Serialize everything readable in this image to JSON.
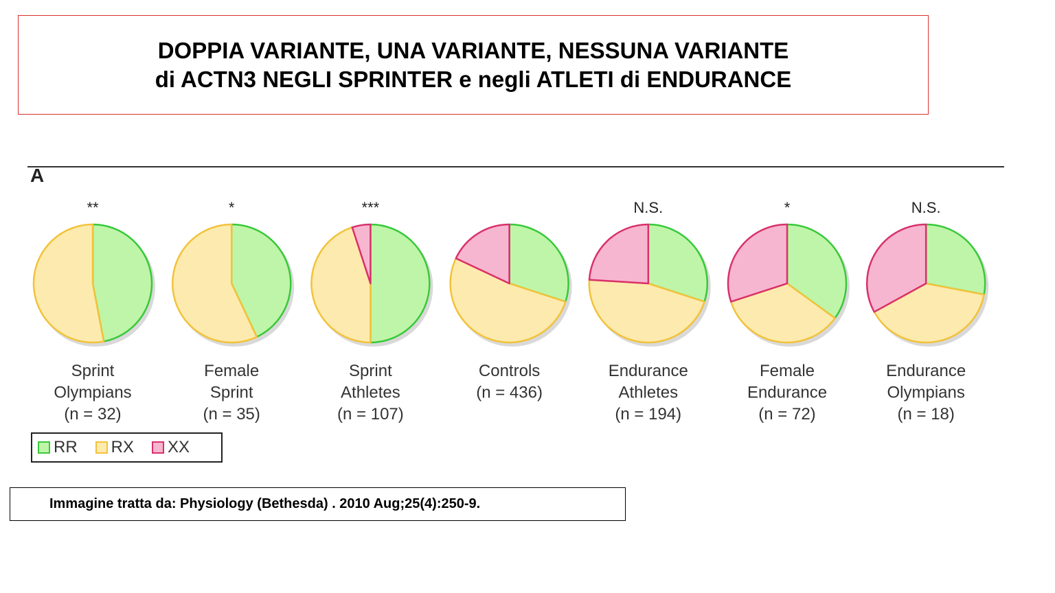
{
  "title": {
    "line1": "DOPPIA VARIANTE, UNA VARIANTE, NESSUNA VARIANTE",
    "line2": "di ACTN3 NEGLI SPRINTER e negli ATLETI di ENDURANCE"
  },
  "panel_label": "A",
  "source": "Immagine tratta da: Physiology (Bethesda) . 2010 Aug;25(4):250-9.",
  "colors": {
    "RR_fill": "#bff5a8",
    "RR_stroke": "#38c93a",
    "RX_fill": "#fdeaae",
    "RX_stroke": "#f2c23a",
    "XX_fill": "#f7b6cf",
    "XX_stroke": "#d9306b"
  },
  "legend": [
    {
      "key": "RR",
      "label": "RR"
    },
    {
      "key": "RX",
      "label": "RX"
    },
    {
      "key": "XX",
      "label": "XX"
    }
  ],
  "chart_data": {
    "type": "pie",
    "categories": [
      "RR",
      "RX",
      "XX"
    ],
    "groups": [
      {
        "caption": [
          "Sprint",
          "Olympians",
          "(n = 32)"
        ],
        "significance": "**",
        "values": {
          "RR": 47,
          "RX": 53,
          "XX": 0
        }
      },
      {
        "caption": [
          "Female",
          "Sprint",
          "(n = 35)"
        ],
        "significance": "*",
        "values": {
          "RR": 43,
          "RX": 57,
          "XX": 0
        }
      },
      {
        "caption": [
          "Sprint",
          "Athletes",
          "(n = 107)"
        ],
        "significance": "***",
        "values": {
          "RR": 50,
          "RX": 45,
          "XX": 5
        }
      },
      {
        "caption": [
          "Controls",
          "(n = 436)"
        ],
        "significance": "",
        "values": {
          "RR": 30,
          "RX": 52,
          "XX": 18
        }
      },
      {
        "caption": [
          "Endurance",
          "Athletes",
          "(n = 194)"
        ],
        "significance": "N.S.",
        "values": {
          "RR": 30,
          "RX": 46,
          "XX": 24
        }
      },
      {
        "caption": [
          "Female",
          "Endurance",
          "(n = 72)"
        ],
        "significance": "*",
        "values": {
          "RR": 35,
          "RX": 35,
          "XX": 30
        }
      },
      {
        "caption": [
          "Endurance",
          "Olympians",
          "(n = 18)"
        ],
        "significance": "N.S.",
        "values": {
          "RR": 28,
          "RX": 39,
          "XX": 33
        }
      }
    ]
  }
}
